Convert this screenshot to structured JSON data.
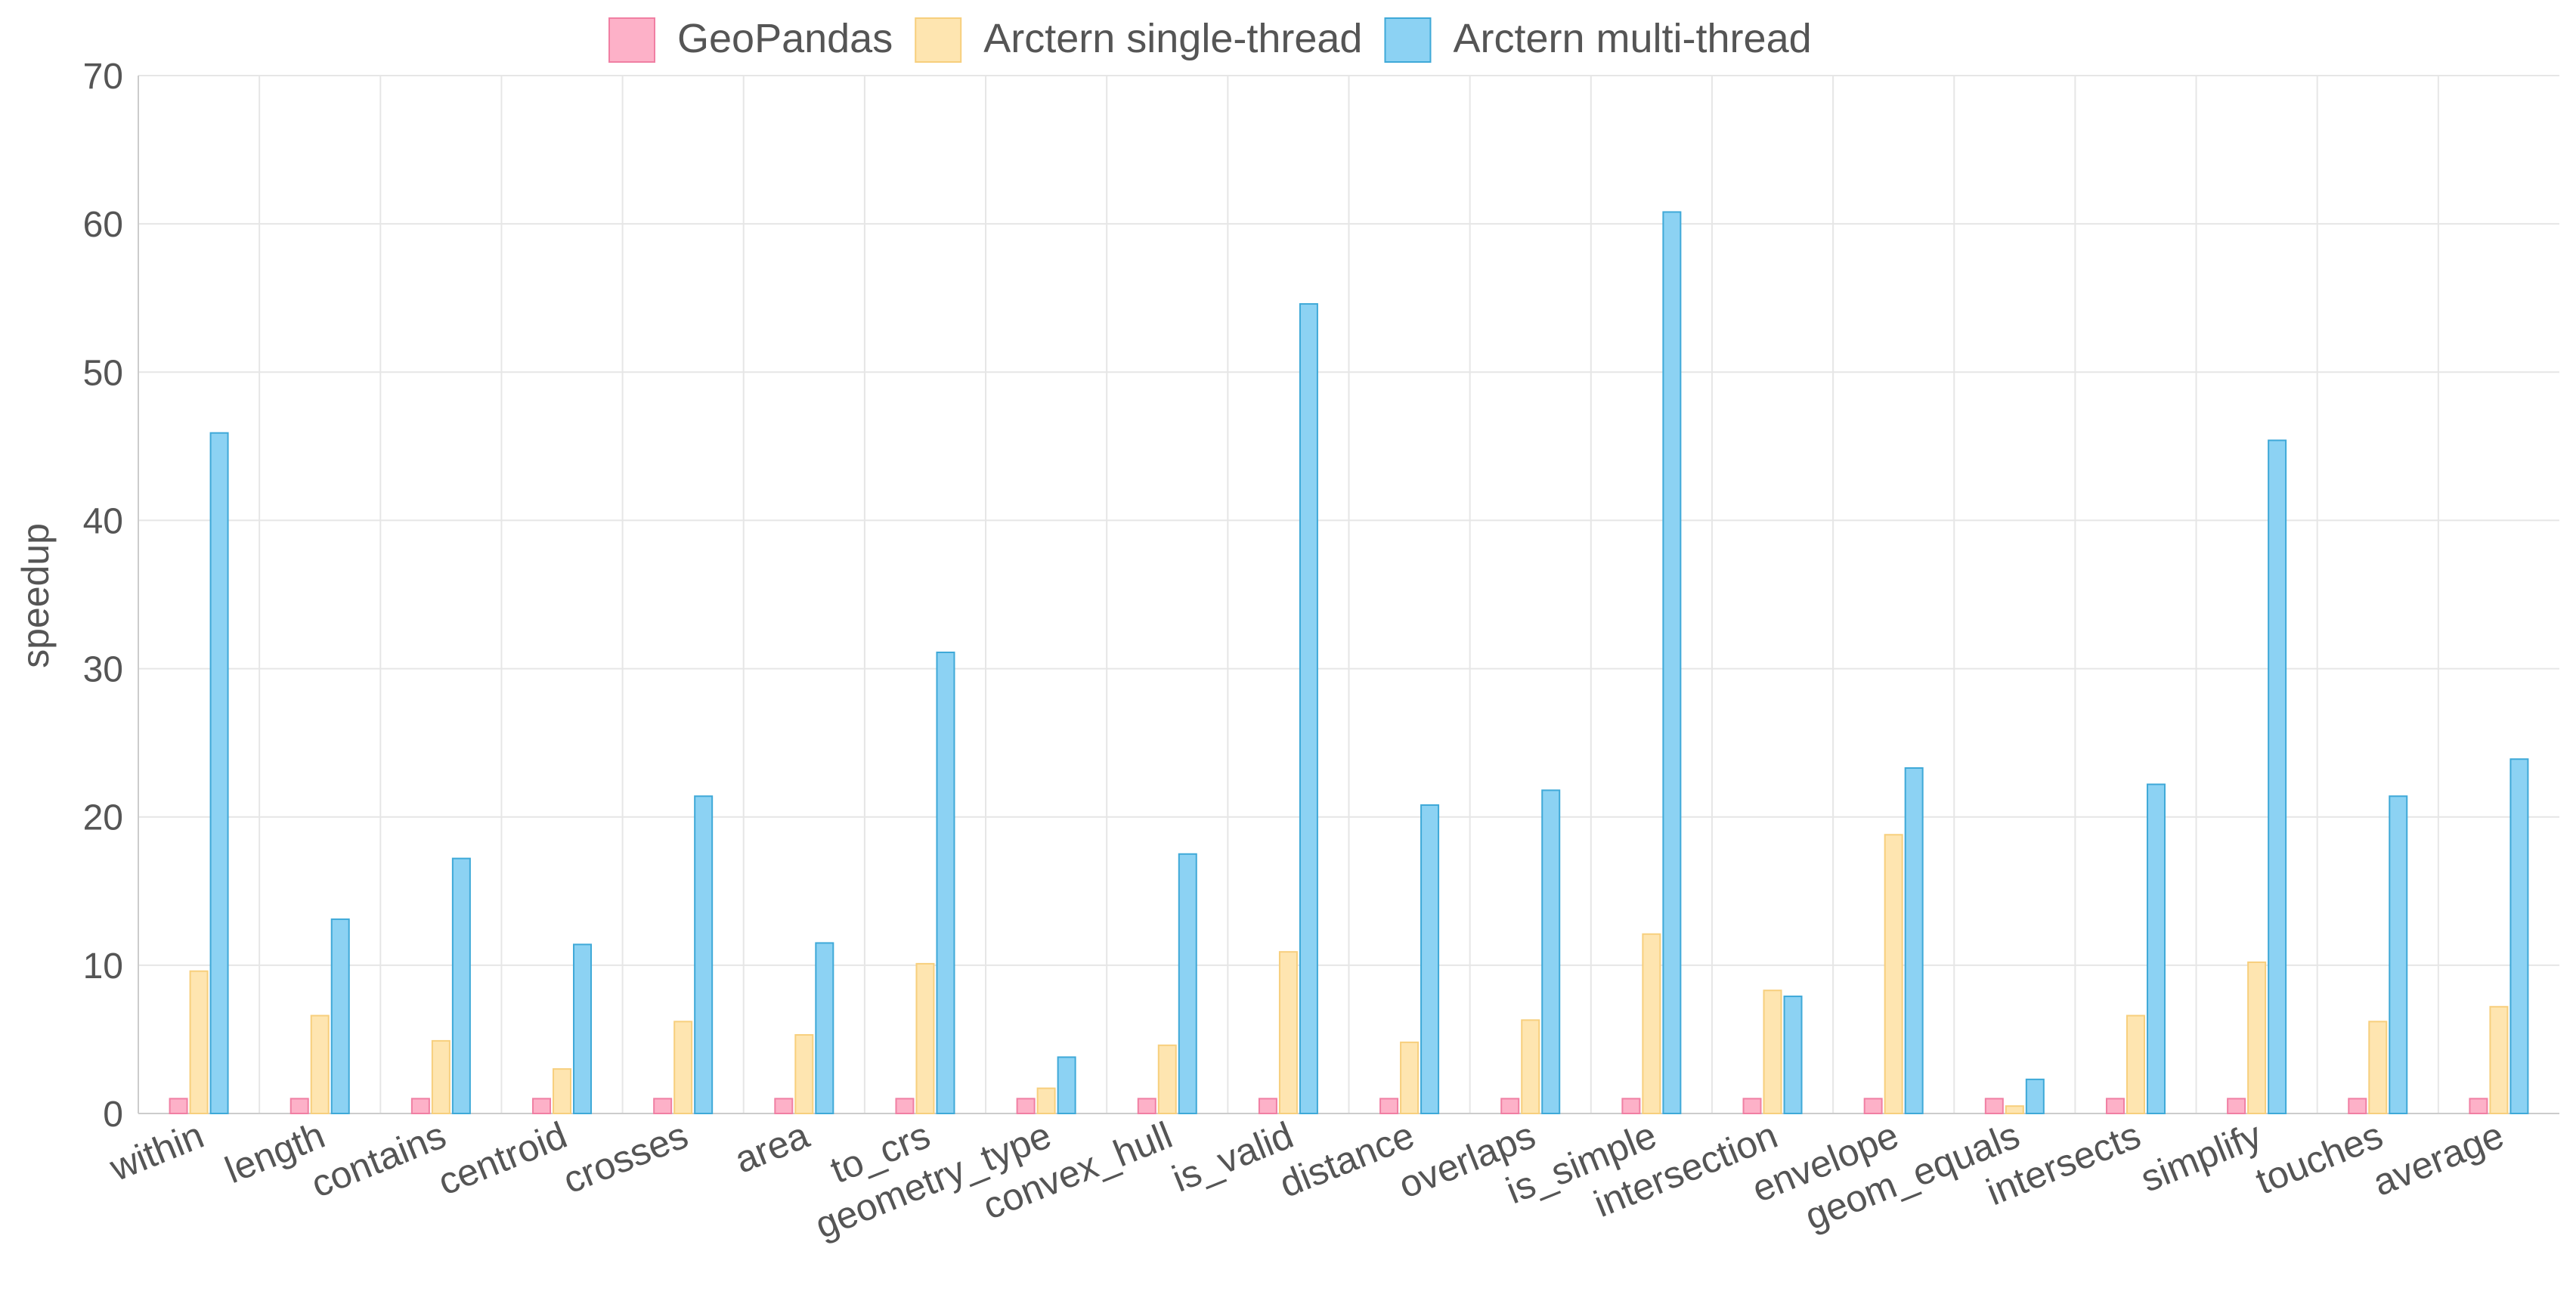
{
  "chart_data": {
    "type": "bar",
    "ylabel": "speedup",
    "xlabel": "",
    "ylim": [
      0,
      70
    ],
    "yticks": [
      0,
      10,
      20,
      30,
      40,
      50,
      60,
      70
    ],
    "grid": true,
    "legend_position": "top-center",
    "categories": [
      "within",
      "length",
      "contains",
      "centroid",
      "crosses",
      "area",
      "to_crs",
      "geometry_type",
      "convex_hull",
      "is_valid",
      "distance",
      "overlaps",
      "is_simple",
      "intersection",
      "envelope",
      "geom_equals",
      "intersects",
      "simplify",
      "touches",
      "average"
    ],
    "series": [
      {
        "name": "GeoPandas",
        "color": "#fdb1c8",
        "stroke": "#f07fa3",
        "values": [
          1,
          1,
          1,
          1,
          1,
          1,
          1,
          1,
          1,
          1,
          1,
          1,
          1,
          1,
          1,
          1,
          1,
          1,
          1,
          1
        ]
      },
      {
        "name": "Arctern single-thread",
        "color": "#fee5b0",
        "stroke": "#f7cf7d",
        "values": [
          9.6,
          6.6,
          4.9,
          3.0,
          6.2,
          5.3,
          10.1,
          1.7,
          4.6,
          10.9,
          4.8,
          6.3,
          12.1,
          8.3,
          18.8,
          0.5,
          6.6,
          10.2,
          6.2,
          7.2
        ]
      },
      {
        "name": "Arctern multi-thread",
        "color": "#8cd2f3",
        "stroke": "#3fa9d8",
        "values": [
          45.9,
          13.1,
          17.2,
          11.4,
          21.4,
          11.5,
          31.1,
          3.8,
          17.5,
          54.6,
          20.8,
          21.8,
          60.8,
          7.9,
          23.3,
          2.3,
          22.2,
          45.4,
          21.4,
          23.9
        ]
      }
    ]
  }
}
